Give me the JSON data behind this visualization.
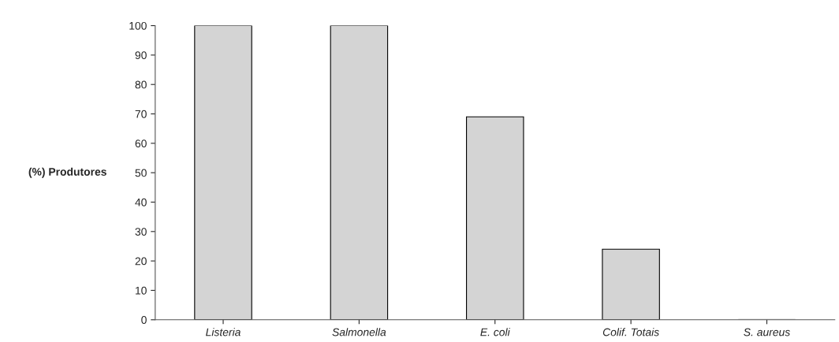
{
  "chart_data": {
    "type": "bar",
    "ylabel": "(%) Produtores",
    "categories": [
      "Listeria",
      "Salmonella",
      "E. coli",
      "Colif. Totais",
      "S. aureus"
    ],
    "values": [
      100,
      100,
      69,
      24,
      0
    ],
    "color": "#d4d4d4",
    "ylim": [
      0,
      100
    ],
    "yticks": [
      0,
      10,
      20,
      30,
      40,
      50,
      60,
      70,
      80,
      90,
      100
    ],
    "grid": false
  }
}
